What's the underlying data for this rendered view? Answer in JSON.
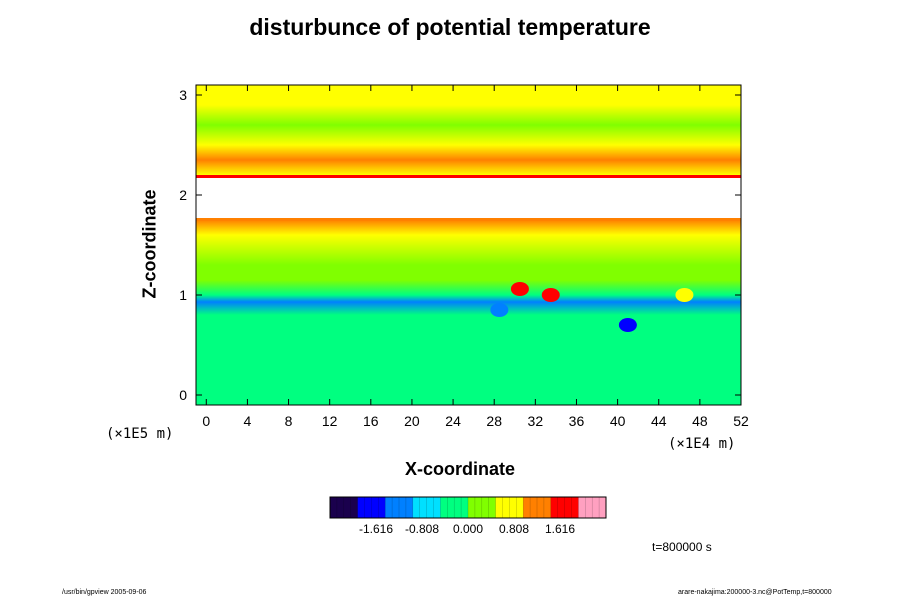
{
  "chart_data": {
    "type": "heatmap",
    "title": "disturbunce of potential temperature",
    "xlabel": "X-coordinate",
    "ylabel": "Z-coordinate",
    "x_unit": "(×1E4 m)",
    "y_unit": "(×1E5 m)",
    "xlim": [
      -1,
      52
    ],
    "ylim": [
      -0.1,
      3.1
    ],
    "x_ticks": [
      "0",
      "4",
      "8",
      "12",
      "16",
      "20",
      "24",
      "28",
      "32",
      "36",
      "40",
      "44",
      "48",
      "52"
    ],
    "y_ticks": [
      "0",
      "1",
      "2",
      "3"
    ],
    "colorbar": {
      "ticks": [
        "-1.616",
        "-0.808",
        "0.000",
        "0.808",
        "1.616"
      ],
      "tick_values": [
        -1.616,
        -0.808,
        0.0,
        0.808,
        1.616
      ],
      "range": [
        -2.424,
        2.424
      ],
      "colors": [
        "#1a004d",
        "#0000ff",
        "#0080ff",
        "#00e0ff",
        "#00ff80",
        "#80ff00",
        "#ffff00",
        "#ff8000",
        "#ff0000",
        "#ffa0c0"
      ]
    },
    "field_rows": [
      {
        "z": 3.05,
        "value": 0.55
      },
      {
        "z": 2.9,
        "value": 0.5
      },
      {
        "z": 2.7,
        "value": 0.45
      },
      {
        "z": 2.5,
        "value": 0.55
      },
      {
        "z": 2.35,
        "value": 1.1
      },
      {
        "z": 2.2,
        "value": 0.9
      },
      {
        "z": 1.9,
        "value": 2.6
      },
      {
        "z": 1.75,
        "value": 1.3
      },
      {
        "z": 1.6,
        "value": 0.6
      },
      {
        "z": 1.3,
        "value": 0.42
      },
      {
        "z": 1.15,
        "value": 0.3
      },
      {
        "z": 1.0,
        "value": -0.2
      },
      {
        "z": 0.93,
        "value": -1.0
      },
      {
        "z": 0.8,
        "value": -0.45
      },
      {
        "z": 0.5,
        "value": -0.4
      },
      {
        "z": 0.2,
        "value": -0.4
      },
      {
        "z": -0.1,
        "value": -0.4
      }
    ],
    "saturated_band": {
      "z_min": 1.76,
      "z_max": 2.18,
      "color": "#ffffff"
    },
    "features": [
      {
        "x": 30.5,
        "z": 1.06,
        "value": 1.9
      },
      {
        "x": 33.5,
        "z": 1.0,
        "value": 1.6
      },
      {
        "x": 41.0,
        "z": 0.7,
        "value": -1.6
      },
      {
        "x": 28.5,
        "z": 0.85,
        "value": -1.4
      },
      {
        "x": 46.5,
        "z": 1.0,
        "value": 0.8
      }
    ]
  },
  "time_label": "t=800000 s",
  "footer_left": "/usr/bin/gpview 2005-09-06",
  "footer_right": "arare-nakajima:200000-3.nc@PotTemp,t=800000"
}
